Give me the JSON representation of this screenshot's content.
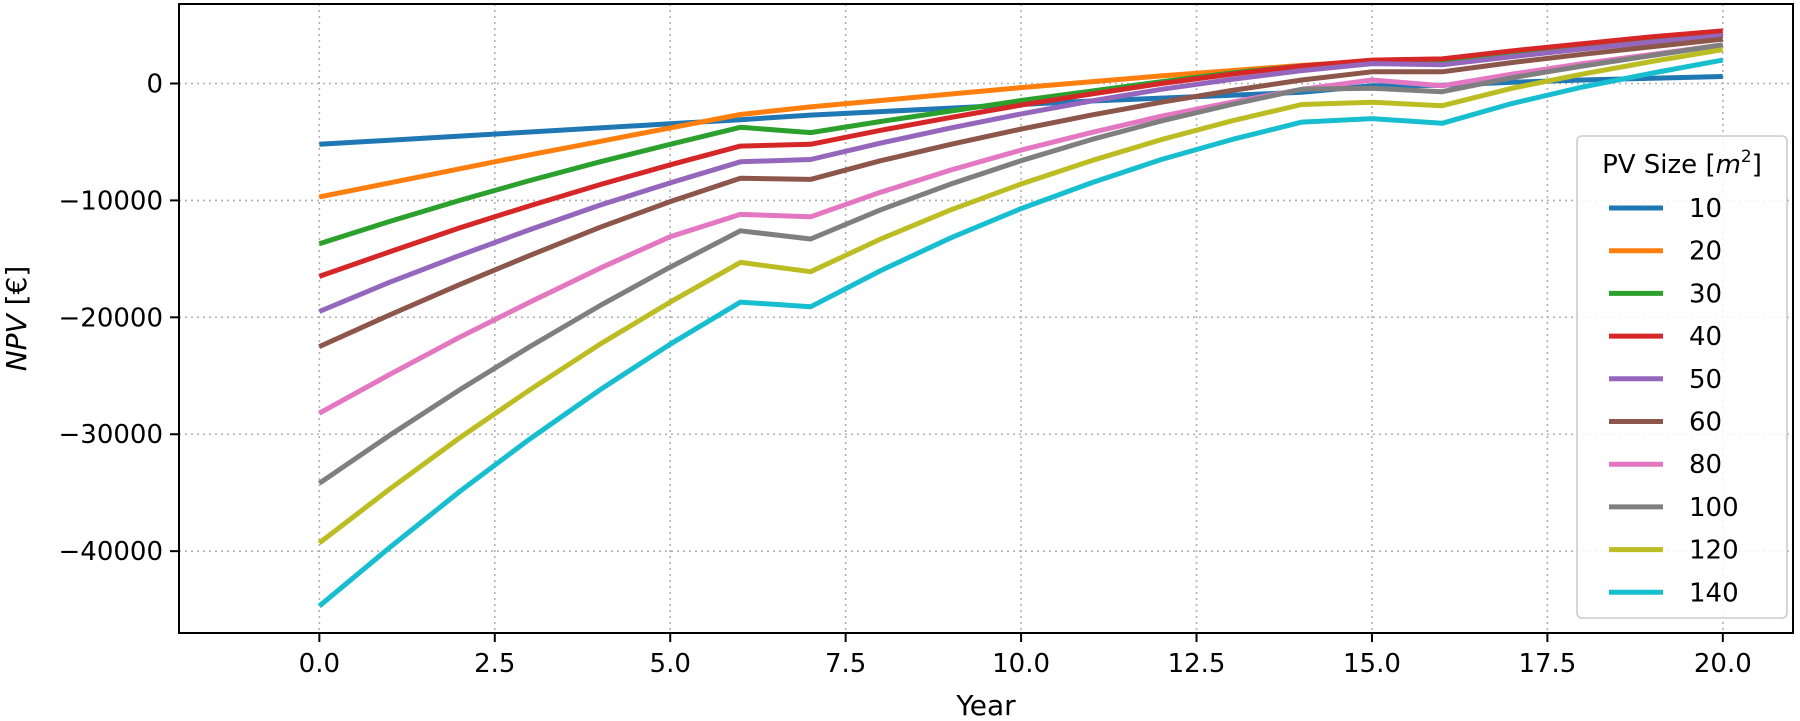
{
  "chart_data": {
    "type": "line",
    "xlabel": "Year",
    "ylabel_name": "NPV",
    "ylabel_unit": " [€]",
    "xlim": [
      -2.0,
      21.0
    ],
    "ylim": [
      -47000,
      6800
    ],
    "x_ticks": [
      0.0,
      2.5,
      5.0,
      7.5,
      10.0,
      12.5,
      15.0,
      17.5,
      20.0
    ],
    "x_tick_labels": [
      "0.0",
      "2.5",
      "5.0",
      "7.5",
      "10.0",
      "12.5",
      "15.0",
      "17.5",
      "20.0"
    ],
    "y_ticks": [
      -40000,
      -30000,
      -20000,
      -10000,
      0
    ],
    "y_tick_labels": [
      "−40000",
      "−30000",
      "−20000",
      "−10000",
      "0"
    ],
    "grid": true,
    "legend_title_prefix": "PV Size [",
    "legend_title_var": "m",
    "legend_title_sup": "2",
    "legend_title_suffix": "]",
    "legend_position": "lower right",
    "x": [
      0,
      1,
      2,
      3,
      4,
      5,
      6,
      7,
      8,
      9,
      10,
      11,
      12,
      13,
      14,
      15,
      16,
      17,
      18,
      19,
      20
    ],
    "series": [
      {
        "name": "10",
        "color": "#1f77b4",
        "values": [
          -5200,
          -4850,
          -4500,
          -4150,
          -3800,
          -3450,
          -3100,
          -2700,
          -2400,
          -2100,
          -1800,
          -1500,
          -1250,
          -1000,
          -750,
          -200,
          -150,
          100,
          300,
          450,
          600
        ]
      },
      {
        "name": "20",
        "color": "#ff7f0e",
        "values": [
          -9700,
          -8500,
          -7300,
          -6100,
          -4950,
          -3800,
          -2650,
          -2000,
          -1450,
          -900,
          -350,
          150,
          650,
          1100,
          1550,
          1900,
          2000,
          2600,
          3200,
          3800,
          4300
        ]
      },
      {
        "name": "30",
        "color": "#2ca02c",
        "values": [
          -13700,
          -11800,
          -10000,
          -8300,
          -6700,
          -5200,
          -3750,
          -4200,
          -3250,
          -2350,
          -1450,
          -650,
          150,
          900,
          1500,
          1900,
          1900,
          2500,
          3100,
          3650,
          4200
        ]
      },
      {
        "name": "40",
        "color": "#d62728",
        "values": [
          -16500,
          -14400,
          -12350,
          -10450,
          -8650,
          -6950,
          -5350,
          -5200,
          -4000,
          -2900,
          -1850,
          -900,
          0,
          800,
          1500,
          2000,
          2100,
          2800,
          3400,
          4000,
          4500
        ]
      },
      {
        "name": "50",
        "color": "#9467bd",
        "values": [
          -19500,
          -17000,
          -14700,
          -12500,
          -10400,
          -8500,
          -6700,
          -6500,
          -5100,
          -3800,
          -2600,
          -1500,
          -500,
          350,
          1100,
          1700,
          1600,
          2300,
          2950,
          3550,
          4100
        ]
      },
      {
        "name": "60",
        "color": "#8c564b",
        "values": [
          -22500,
          -19800,
          -17200,
          -14700,
          -12300,
          -10100,
          -8100,
          -8200,
          -6600,
          -5200,
          -3900,
          -2700,
          -1600,
          -600,
          300,
          1000,
          1000,
          1800,
          2500,
          3150,
          3800
        ]
      },
      {
        "name": "80",
        "color": "#e377c2",
        "values": [
          -28200,
          -24900,
          -21700,
          -18700,
          -15800,
          -13100,
          -11200,
          -11400,
          -9300,
          -7400,
          -5700,
          -4200,
          -2800,
          -1600,
          -500,
          300,
          -200,
          800,
          1700,
          2500,
          3300
        ]
      },
      {
        "name": "100",
        "color": "#7f7f7f",
        "values": [
          -34200,
          -30100,
          -26200,
          -22500,
          -19000,
          -15700,
          -12600,
          -13300,
          -10800,
          -8600,
          -6600,
          -4800,
          -3200,
          -1800,
          -500,
          -400,
          -700,
          500,
          1500,
          2400,
          3300
        ]
      },
      {
        "name": "120",
        "color": "#bcbd22",
        "values": [
          -39300,
          -34700,
          -30300,
          -26200,
          -22300,
          -18700,
          -15300,
          -16100,
          -13300,
          -10800,
          -8600,
          -6600,
          -4800,
          -3200,
          -1800,
          -1600,
          -1900,
          -400,
          800,
          1900,
          2900
        ]
      },
      {
        "name": "140",
        "color": "#17becf",
        "values": [
          -44700,
          -39700,
          -34900,
          -30400,
          -26200,
          -22300,
          -18700,
          -19100,
          -16000,
          -13200,
          -10700,
          -8500,
          -6500,
          -4800,
          -3300,
          -3000,
          -3400,
          -1700,
          -300,
          900,
          2000
        ]
      }
    ]
  }
}
